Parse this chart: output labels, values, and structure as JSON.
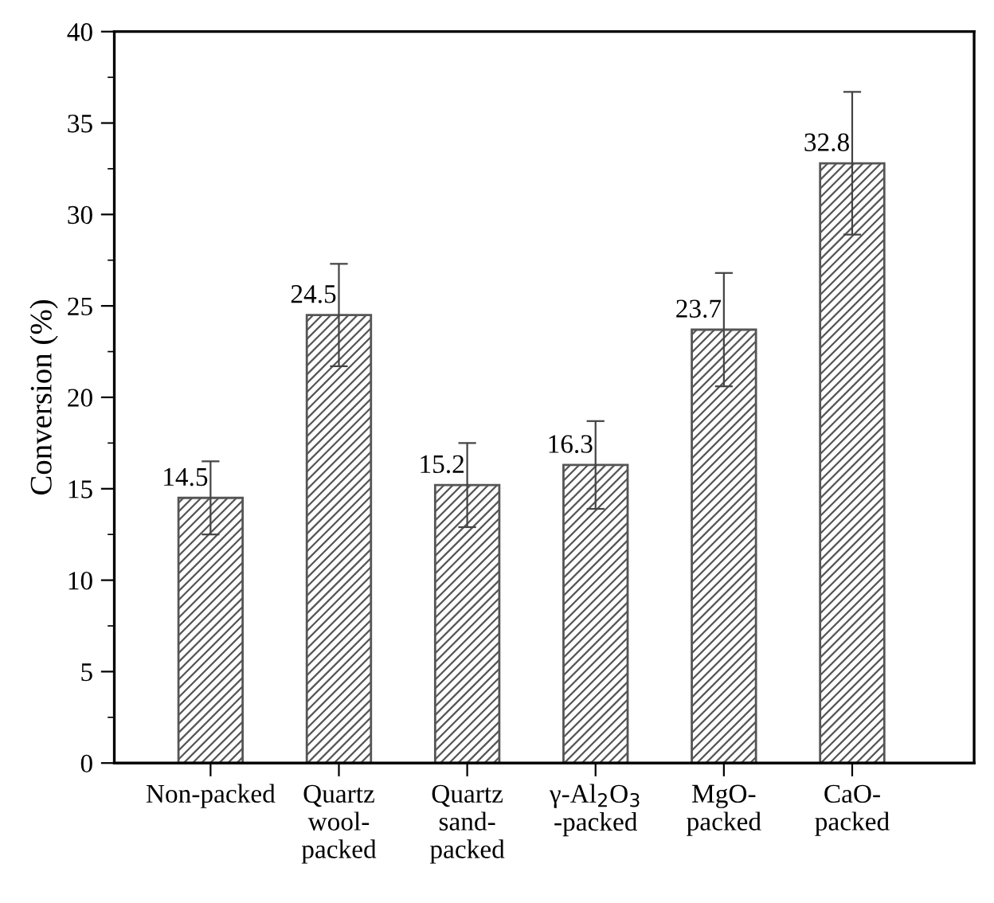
{
  "chart_data": {
    "type": "bar",
    "ylabel": "Conversion (%)",
    "categories": [
      "Non-packed",
      "Quartz\nwool-\npacked",
      "Quartz\nsand-\npacked",
      "γ-Al$_{2}$O$_{3}$\n-packed",
      "MgO-\npacked",
      "CaO-\npacked"
    ],
    "values": [
      14.5,
      24.5,
      15.2,
      16.3,
      23.7,
      32.8
    ],
    "errors": [
      2.0,
      2.8,
      2.3,
      2.4,
      3.1,
      3.9
    ],
    "color": "#555555",
    "ylim": [
      0,
      40
    ],
    "yticks": [
      0,
      5,
      10,
      15,
      20,
      25,
      30,
      35,
      40
    ],
    "data_labels": true,
    "grid": false
  }
}
